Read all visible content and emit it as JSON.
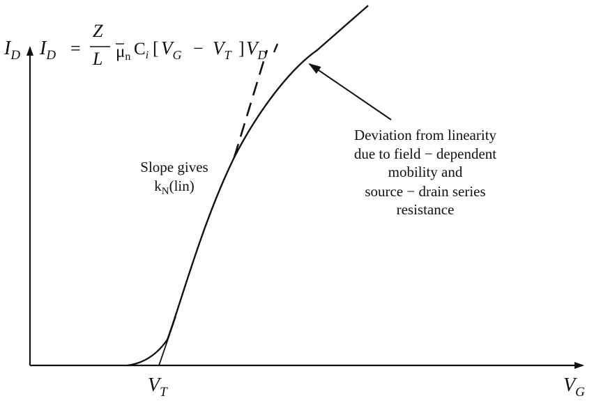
{
  "axes": {
    "y_symbol": "I",
    "y_subscript": "D",
    "x_symbol": "V",
    "x_subscript": "G"
  },
  "threshold": {
    "symbol": "V",
    "subscript": "T"
  },
  "equation": {
    "lhs_symbol": "I",
    "lhs_subscript": "D",
    "equals": "=",
    "numerator": "Z",
    "denominator": "L",
    "mu": "μ",
    "mu_sub": "n",
    "cap": "C",
    "cap_sub": "i",
    "bracket_open": "[",
    "vg": "V",
    "vg_sub": "G",
    "minus": "−",
    "vt": "V",
    "vt_sub": "T",
    "bracket_close": "]",
    "vd": "V",
    "vd_sub": "D"
  },
  "slope_label": {
    "line1": "Slope gives",
    "k": "k",
    "k_sub": "N",
    "k_suffix": "(lin)"
  },
  "deviation_label": {
    "lines": [
      "Deviation from linearity",
      "due to field − dependent",
      "mobility and",
      "source − drain series",
      "resistance"
    ]
  },
  "colors": {
    "ink": "#111111",
    "background": "#ffffff"
  }
}
